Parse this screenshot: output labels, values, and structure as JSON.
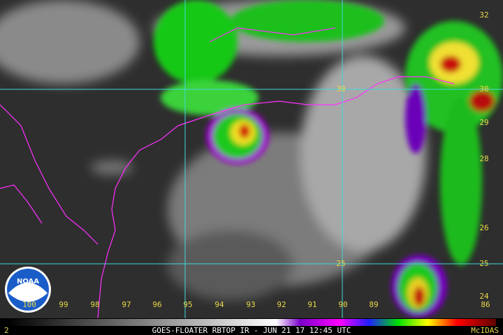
{
  "map": {
    "longitude_labels": [
      "100",
      "99",
      "98",
      "97",
      "96",
      "95",
      "94",
      "93",
      "92",
      "91",
      "90",
      "89",
      "86"
    ],
    "latitude_labels": [
      "32",
      "30",
      "29",
      "28",
      "26",
      "25",
      "24"
    ],
    "grid_labels": [
      "30",
      "25"
    ],
    "logo": "NOAA"
  },
  "footer": {
    "frame": "2",
    "caption": "GOES-FLOATER RBTOP IR - JUN 21 17 12:45 UTC",
    "software": "McIDAS"
  }
}
